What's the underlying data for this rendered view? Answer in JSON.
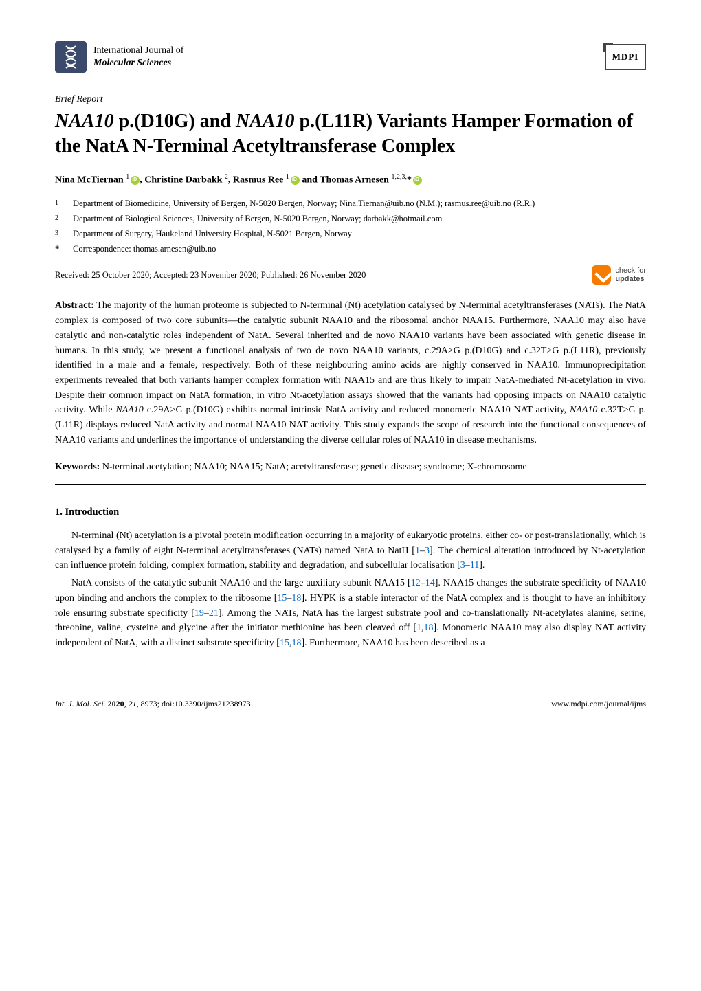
{
  "journal": {
    "line1": "International Journal of",
    "line2": "Molecular Sciences",
    "publisher": "MDPI"
  },
  "article_type": "Brief Report",
  "title": "NAA10 p.(D10G) and NAA10 p.(L11R) Variants Hamper Formation of the NatA N-Terminal Acetyltransferase Complex",
  "authors_html": "Nina McTiernan <sup>1</sup><span class='orcid' data-name='orcid-icon' data-interactable='false'></span>, Christine Darbakk <sup>2</sup>, Rasmus Ree <sup>1</sup><span class='orcid' data-name='orcid-icon' data-interactable='false'></span> and Thomas Arnesen <sup>1,2,3,</sup>*<span class='orcid' data-name='orcid-icon' data-interactable='false'></span>",
  "affiliations": [
    {
      "num": "1",
      "text": "Department of Biomedicine, University of Bergen, N-5020 Bergen, Norway; Nina.Tiernan@uib.no (N.M.); rasmus.ree@uib.no (R.R.)"
    },
    {
      "num": "2",
      "text": "Department of Biological Sciences, University of Bergen, N-5020 Bergen, Norway; darbakk@hotmail.com"
    },
    {
      "num": "3",
      "text": "Department of Surgery, Haukeland University Hospital, N-5021 Bergen, Norway"
    }
  ],
  "correspondence": "Correspondence: thomas.arnesen@uib.no",
  "dates": "Received: 25 October 2020; Accepted: 23 November 2020; Published: 26 November 2020",
  "check_updates": {
    "line1": "check for",
    "line2": "updates"
  },
  "abstract_label": "Abstract:",
  "abstract": " The majority of the human proteome is subjected to N-terminal (Nt) acetylation catalysed by N-terminal acetyltransferases (NATs). The NatA complex is composed of two core subunits—the catalytic subunit NAA10 and the ribosomal anchor NAA15. Furthermore, NAA10 may also have catalytic and non-catalytic roles independent of NatA. Several inherited and de novo NAA10 variants have been associated with genetic disease in humans. In this study, we present a functional analysis of two de novo NAA10 variants, c.29A>G p.(D10G) and c.32T>G p.(L11R), previously identified in a male and a female, respectively. Both of these neighbouring amino acids are highly conserved in NAA10. Immunoprecipitation experiments revealed that both variants hamper complex formation with NAA15 and are thus likely to impair NatA-mediated Nt-acetylation in vivo. Despite their common impact on NatA formation, in vitro Nt-acetylation assays showed that the variants had opposing impacts on NAA10 catalytic activity. While NAA10 c.29A>G p.(D10G) exhibits normal intrinsic NatA activity and reduced monomeric NAA10 NAT activity, NAA10 c.32T>G p.(L11R) displays reduced NatA activity and normal NAA10 NAT activity. This study expands the scope of research into the functional consequences of NAA10 variants and underlines the importance of understanding the diverse cellular roles of NAA10 in disease mechanisms.",
  "keywords_label": "Keywords:",
  "keywords": " N-terminal acetylation; NAA10; NAA15; NatA; acetyltransferase; genetic disease; syndrome; X-chromosome",
  "section1_heading": "1. Introduction",
  "para1_parts": [
    "N-terminal (Nt) acetylation is a pivotal protein modification occurring in a majority of eukaryotic proteins, either co- or post-translationally, which is catalysed by a family of eight N-terminal acetyltransferases (NATs) named NatA to NatH [",
    "1",
    "–",
    "3",
    "]. The chemical alteration introduced by Nt-acetylation can influence protein folding, complex formation, stability and degradation, and subcellular localisation [",
    "3",
    "–",
    "11",
    "]."
  ],
  "para2_parts": [
    "NatA consists of the catalytic subunit NAA10 and the large auxiliary subunit NAA15 [",
    "12",
    "–",
    "14",
    "]. NAA15 changes the substrate specificity of NAA10 upon binding and anchors the complex to the ribosome [",
    "15",
    "–",
    "18",
    "]. HYPK is a stable interactor of the NatA complex and is thought to have an inhibitory role ensuring substrate specificity [",
    "19",
    "–",
    "21",
    "]. Among the NATs, NatA has the largest substrate pool and co-translationally Nt-acetylates alanine, serine, threonine, valine, cysteine and glycine after the initiator methionine has been cleaved off [",
    "1",
    ",",
    "18",
    "]. Monomeric NAA10 may also display NAT activity independent of NatA, with a distinct substrate specificity [",
    "15",
    ",",
    "18",
    "]. Furthermore, NAA10 has been described as a"
  ],
  "footer": {
    "left": "Int. J. Mol. Sci. 2020, 21, 8973; doi:10.3390/ijms21238973",
    "right": "www.mdpi.com/journal/ijms"
  },
  "colors": {
    "orcid_green": "#a6ce39",
    "ref_blue": "#0066cc",
    "check_orange": "#f57c00",
    "logo_bg": "#3b4a6b"
  }
}
